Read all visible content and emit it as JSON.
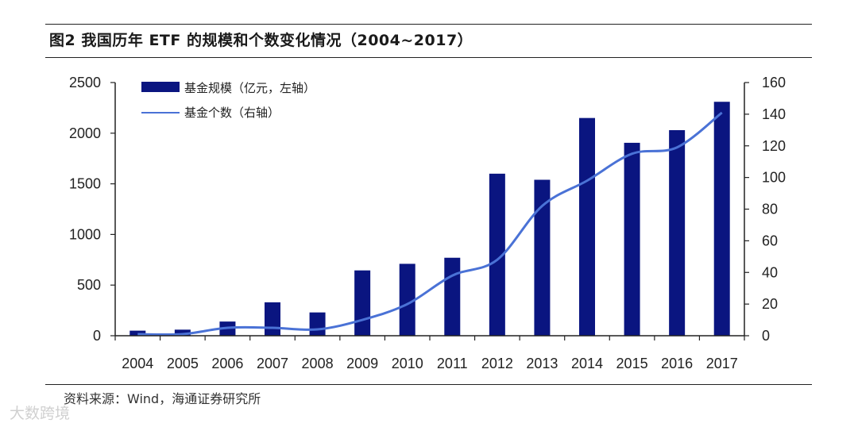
{
  "figure": {
    "title": "图2  我国历年 ETF 的规模和个数变化情况（2004~2017）",
    "source": "资料来源：Wind，海通证券研究所",
    "watermark": "大数跨境"
  },
  "colors": {
    "bar": "#0a1580",
    "line": "#4a72d6",
    "axis": "#222222",
    "rule": "#222222"
  },
  "chart_data": {
    "type": "bar+line",
    "categories": [
      "2004",
      "2005",
      "2006",
      "2007",
      "2008",
      "2009",
      "2010",
      "2011",
      "2012",
      "2013",
      "2014",
      "2015",
      "2016",
      "2017"
    ],
    "series": [
      {
        "name": "基金规模（亿元，左轴）",
        "type": "bar",
        "axis": "left",
        "values": [
          50,
          60,
          140,
          330,
          230,
          645,
          710,
          770,
          1600,
          1540,
          2150,
          1905,
          2030,
          2310
        ]
      },
      {
        "name": "基金个数（右轴）",
        "type": "line",
        "axis": "right",
        "values": [
          1,
          1,
          5,
          5,
          4,
          10,
          20,
          38,
          48,
          82,
          98,
          115,
          119,
          141
        ]
      }
    ],
    "y_left": {
      "min": 0,
      "max": 2500,
      "ticks": [
        0,
        500,
        1000,
        1500,
        2000,
        2500
      ]
    },
    "y_right": {
      "min": 0,
      "max": 160,
      "ticks": [
        0,
        20,
        40,
        60,
        80,
        100,
        120,
        140,
        160
      ]
    },
    "legend_position": "top-left",
    "grid": false
  }
}
